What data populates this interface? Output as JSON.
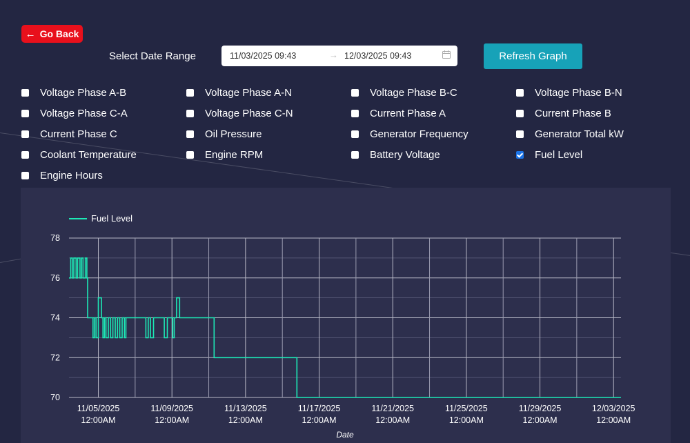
{
  "nav": {
    "back_label": "Go Back"
  },
  "date_range": {
    "label": "Select Date Range",
    "start": "11/03/2025 09:43",
    "end": "12/03/2025 09:43"
  },
  "refresh_label": "Refresh Graph",
  "parameters": [
    {
      "label": "Voltage Phase A-B",
      "checked": false
    },
    {
      "label": "Voltage Phase A-N",
      "checked": false
    },
    {
      "label": "Voltage Phase B-C",
      "checked": false
    },
    {
      "label": "Voltage Phase B-N",
      "checked": false
    },
    {
      "label": "Voltage Phase C-A",
      "checked": false
    },
    {
      "label": "Voltage Phase C-N",
      "checked": false
    },
    {
      "label": "Current Phase A",
      "checked": false
    },
    {
      "label": "Current Phase B",
      "checked": false
    },
    {
      "label": "Current Phase C",
      "checked": false
    },
    {
      "label": "Oil Pressure",
      "checked": false
    },
    {
      "label": "Generator Frequency",
      "checked": false
    },
    {
      "label": "Generator Total kW",
      "checked": false
    },
    {
      "label": "Coolant Temperature",
      "checked": false
    },
    {
      "label": "Engine RPM",
      "checked": false
    },
    {
      "label": "Battery Voltage",
      "checked": false
    },
    {
      "label": "Fuel Level",
      "checked": true
    },
    {
      "label": "Engine Hours",
      "checked": false
    }
  ],
  "colors": {
    "line": "#1de9b6",
    "accent": "#17a2b8",
    "back": "#e8101c"
  },
  "chart_data": {
    "type": "line",
    "title": "",
    "xlabel": "Date",
    "ylabel": "",
    "ylim": [
      70,
      78
    ],
    "y_ticks": [
      70,
      72,
      74,
      76,
      78
    ],
    "x_ticks": [
      {
        "date": "11/05/2025",
        "time": "12:00AM"
      },
      {
        "date": "11/09/2025",
        "time": "12:00AM"
      },
      {
        "date": "11/13/2025",
        "time": "12:00AM"
      },
      {
        "date": "11/17/2025",
        "time": "12:00AM"
      },
      {
        "date": "11/21/2025",
        "time": "12:00AM"
      },
      {
        "date": "11/25/2025",
        "time": "12:00AM"
      },
      {
        "date": "11/29/2025",
        "time": "12:00AM"
      },
      {
        "date": "12/03/2025",
        "time": "12:00AM"
      }
    ],
    "legend": "top-left",
    "grid": true,
    "series": [
      {
        "name": "Fuel Level",
        "points": [
          {
            "x": "11/03/2025 09:43",
            "y": 76
          },
          {
            "x": "11/03/2025 12:00",
            "y": 77
          },
          {
            "x": "11/03/2025 14:00",
            "y": 76
          },
          {
            "x": "11/03/2025 16:00",
            "y": 77
          },
          {
            "x": "11/03/2025 19:00",
            "y": 76
          },
          {
            "x": "11/03/2025 21:00",
            "y": 77
          },
          {
            "x": "11/04/2025 00:00",
            "y": 76
          },
          {
            "x": "11/04/2025 02:00",
            "y": 77
          },
          {
            "x": "11/04/2025 04:00",
            "y": 76
          },
          {
            "x": "11/04/2025 07:00",
            "y": 77
          },
          {
            "x": "11/04/2025 09:00",
            "y": 76
          },
          {
            "x": "11/04/2025 10:00",
            "y": 74
          },
          {
            "x": "11/04/2025 17:00",
            "y": 73
          },
          {
            "x": "11/04/2025 19:00",
            "y": 74
          },
          {
            "x": "11/04/2025 21:00",
            "y": 73
          },
          {
            "x": "11/05/2025 00:00",
            "y": 75
          },
          {
            "x": "11/05/2025 04:00",
            "y": 74
          },
          {
            "x": "11/05/2025 06:00",
            "y": 73
          },
          {
            "x": "11/05/2025 08:00",
            "y": 74
          },
          {
            "x": "11/05/2025 10:00",
            "y": 73
          },
          {
            "x": "11/05/2025 13:00",
            "y": 74
          },
          {
            "x": "11/05/2025 16:00",
            "y": 73
          },
          {
            "x": "11/05/2025 19:00",
            "y": 74
          },
          {
            "x": "11/05/2025 22:00",
            "y": 73
          },
          {
            "x": "11/06/2025 01:00",
            "y": 74
          },
          {
            "x": "11/06/2025 04:00",
            "y": 73
          },
          {
            "x": "11/06/2025 07:00",
            "y": 74
          },
          {
            "x": "11/06/2025 10:00",
            "y": 73
          },
          {
            "x": "11/06/2025 12:00",
            "y": 74
          },
          {
            "x": "11/07/2025 14:00",
            "y": 73
          },
          {
            "x": "11/07/2025 17:00",
            "y": 74
          },
          {
            "x": "11/07/2025 20:00",
            "y": 73
          },
          {
            "x": "11/08/2025 00:00",
            "y": 74
          },
          {
            "x": "11/08/2025 14:00",
            "y": 73
          },
          {
            "x": "11/08/2025 18:00",
            "y": 74
          },
          {
            "x": "11/09/2025 01:00",
            "y": 73
          },
          {
            "x": "11/09/2025 03:00",
            "y": 74
          },
          {
            "x": "11/09/2025 06:00",
            "y": 75
          },
          {
            "x": "11/09/2025 10:00",
            "y": 74
          },
          {
            "x": "11/11/2025 07:00",
            "y": 72
          },
          {
            "x": "11/15/2025 19:00",
            "y": 70
          },
          {
            "x": "12/03/2025 09:43",
            "y": 70
          }
        ]
      }
    ]
  }
}
